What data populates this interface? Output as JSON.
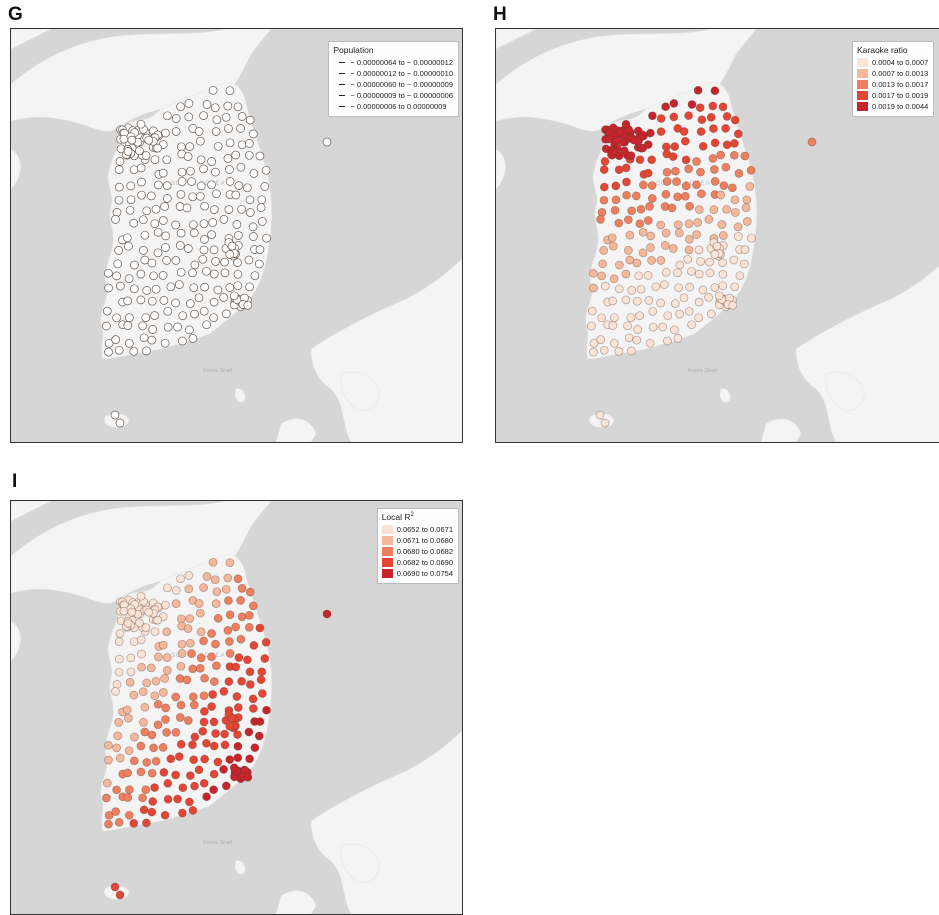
{
  "panels": [
    {
      "label": "G",
      "legend": {
        "title": "Population",
        "entries": [
          "− 0.00000064 to − 0.00000012",
          "− 0.00000012 to − 0.00000010",
          "− 0.00000060 to − 0.00000009",
          "− 0.00000009 to − 0.00000006",
          "− 0.00000006 to 0.00000009"
        ],
        "colors": [
          "#ffffff",
          "#ffffff",
          "#ffffff",
          "#ffffff",
          "#ffffff"
        ]
      },
      "country_label": "SOUTH KOREA",
      "strait_label": "Korea Strait"
    },
    {
      "label": "H",
      "legend": {
        "title": "Karaoke ratio",
        "entries": [
          "0.0004 to 0.0007",
          "0.0007 to 0.0013",
          "0.0013 to 0.0017",
          "0.0017 to 0.0019",
          "0.0019 to 0.0044"
        ],
        "colors": [
          "#fbe3d6",
          "#f6b89b",
          "#ee8060",
          "#e54535",
          "#c8242b"
        ]
      },
      "country_label": "SOUTH KOREA",
      "strait_label": "Korea Strait"
    },
    {
      "label": "I",
      "legend": {
        "title": "Local R",
        "title_superscript": "2",
        "entries": [
          "0.0652 to 0.0671",
          "0.0671 to 0.0680",
          "0.0680 to 0.0682",
          "0.0682 to 0.0690",
          "0.0690 to 0.0754"
        ],
        "colors": [
          "#fbe3d6",
          "#f6b89b",
          "#ee8060",
          "#e54535",
          "#c8242b"
        ]
      },
      "country_label": "SOUTH KOREA",
      "strait_label": "Korea Strait"
    }
  ],
  "colors": {
    "sea": "#d6d6d6",
    "land": "#f4f4f4",
    "point_stroke": "#6b5e55"
  }
}
